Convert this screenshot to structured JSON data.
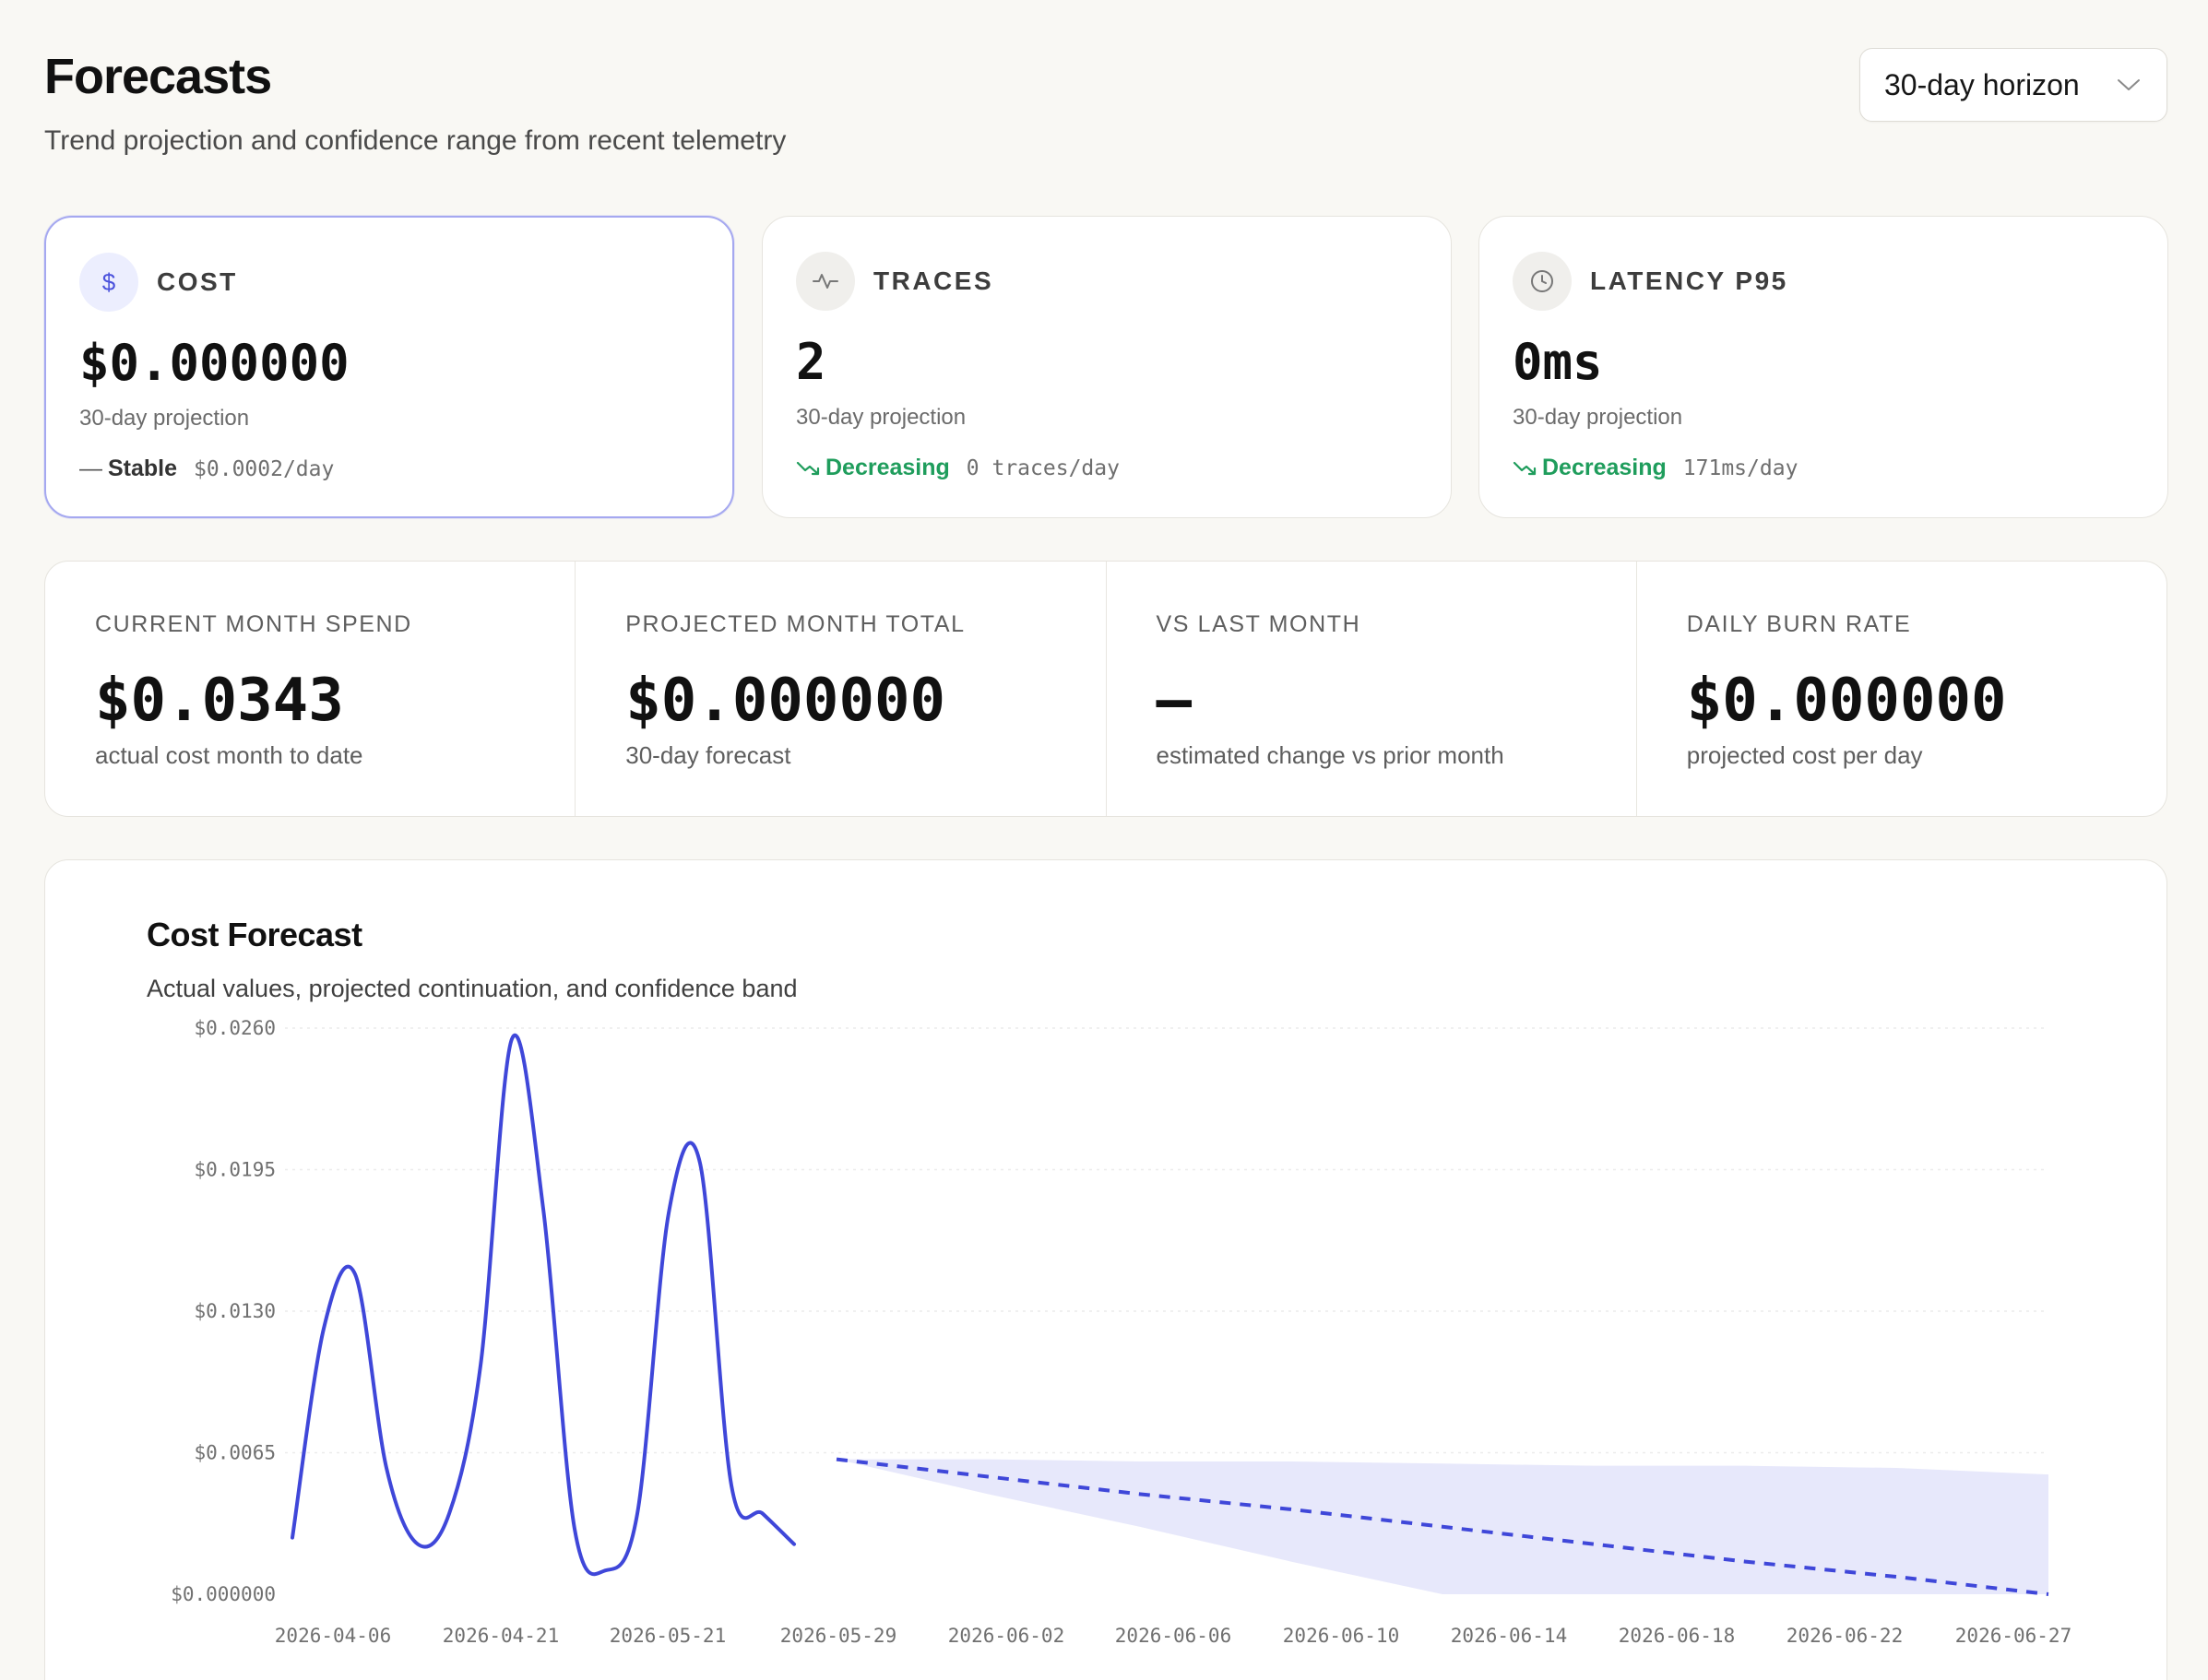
{
  "header": {
    "title": "Forecasts",
    "subtitle": "Trend projection and confidence range from recent telemetry",
    "horizon_select": {
      "value": "30-day horizon",
      "icon": "chevron-down-icon"
    }
  },
  "metric_cards": [
    {
      "name": "COST",
      "icon": "dollar-icon",
      "value": "$0.000000",
      "sub": "30-day projection",
      "trend": "Stable",
      "trend_symbol": "—",
      "trend_color": "#333333",
      "rate": "$0.0002/day",
      "selected": true
    },
    {
      "name": "TRACES",
      "icon": "activity-icon",
      "value": "2",
      "sub": "30-day projection",
      "trend": "Decreasing",
      "trend_symbol": "trending-down-icon",
      "trend_color": "#1f9d5c",
      "rate": "0 traces/day",
      "selected": false
    },
    {
      "name": "LATENCY P95",
      "icon": "clock-icon",
      "value": "0ms",
      "sub": "30-day projection",
      "trend": "Decreasing",
      "trend_symbol": "trending-down-icon",
      "trend_color": "#1f9d5c",
      "rate": "171ms/day",
      "selected": false
    }
  ],
  "stats": [
    {
      "label": "CURRENT MONTH SPEND",
      "value": "$0.0343",
      "desc": "actual cost month to date"
    },
    {
      "label": "PROJECTED MONTH TOTAL",
      "value": "$0.000000",
      "desc": "30-day forecast"
    },
    {
      "label": "VS LAST MONTH",
      "value": "–",
      "desc": "estimated change vs prior month"
    },
    {
      "label": "DAILY BURN RATE",
      "value": "$0.000000",
      "desc": "projected cost per day"
    }
  ],
  "chart": {
    "title": "Cost Forecast",
    "subtitle": "Actual values, projected continuation, and confidence band"
  },
  "chart_data": {
    "type": "line",
    "ylim": [
      0,
      0.026
    ],
    "y_ticks": [
      "$0.000000",
      "$0.0065",
      "$0.0130",
      "$0.0195",
      "$0.0260"
    ],
    "x_ticks": [
      "2026-04-06",
      "2026-04-21",
      "2026-05-21",
      "2026-05-29",
      "2026-06-02",
      "2026-06-06",
      "2026-06-10",
      "2026-06-14",
      "2026-06-18",
      "2026-06-22",
      "2026-06-27"
    ],
    "grid": true,
    "colors": {
      "actual": "#3f47d9",
      "forecast": "#3f47d9",
      "band": "#e7e8fb"
    },
    "series": [
      {
        "style": "actual",
        "values": [
          0.0026,
          0.0122,
          0.0147,
          0.0058,
          0.0023,
          0.0037,
          0.0105,
          0.0255,
          0.0177,
          0.003,
          0.0011,
          0.0037,
          0.0175,
          0.0198,
          0.005,
          0.0037,
          0.0023
        ]
      },
      {
        "style": "forecast",
        "values": [
          0.0062,
          0.0054,
          0.0046,
          0.0039,
          0.0031,
          0.0023,
          0.0015,
          0.0008,
          0.0
        ]
      },
      {
        "style": "band",
        "upper": [
          0.0062,
          0.0062,
          0.0061,
          0.0061,
          0.006,
          0.0059,
          0.0059,
          0.0058,
          0.0055
        ],
        "lower": [
          0.0062,
          0.0046,
          0.0031,
          0.0015,
          0.0,
          0.0,
          0.0,
          0.0,
          0.0
        ]
      }
    ]
  }
}
